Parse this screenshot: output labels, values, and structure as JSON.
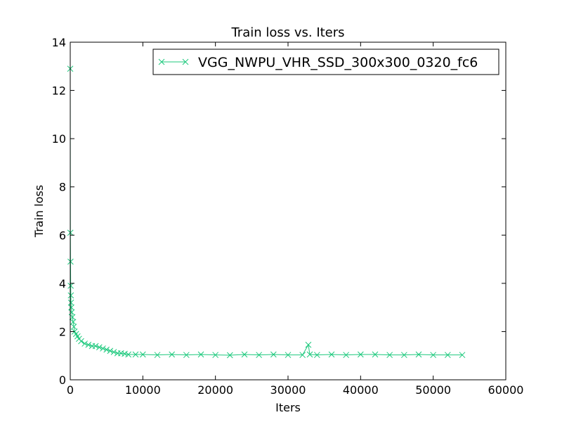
{
  "chart_data": {
    "type": "line",
    "title": "Train loss  vs. Iters",
    "xlabel": "Iters",
    "ylabel": "Train loss",
    "xlim": [
      0,
      60000
    ],
    "ylim": [
      0,
      14
    ],
    "xticks": [
      0,
      10000,
      20000,
      30000,
      40000,
      50000,
      60000
    ],
    "yticks": [
      0,
      2,
      4,
      6,
      8,
      10,
      12,
      14
    ],
    "xtick_labels": [
      "0",
      "10000",
      "20000",
      "30000",
      "40000",
      "50000",
      "60000"
    ],
    "ytick_labels": [
      "0",
      "2",
      "4",
      "6",
      "8",
      "10",
      "12",
      "14"
    ],
    "grid": false,
    "legend_position": "top-right",
    "marker": "x",
    "series": [
      {
        "name": "VGG_NWPU_VHR_SSD_300x300_0320_fc6",
        "color": "#1fc97e",
        "x": [
          0,
          20,
          40,
          60,
          80,
          100,
          150,
          200,
          300,
          400,
          500,
          600,
          800,
          1000,
          1200,
          1500,
          2000,
          2500,
          3000,
          3500,
          4000,
          4500,
          5000,
          5500,
          6000,
          6500,
          7000,
          7500,
          8000,
          9000,
          10000,
          12000,
          14000,
          16000,
          18000,
          20000,
          22000,
          24000,
          26000,
          28000,
          30000,
          32000,
          32800,
          33000,
          34000,
          36000,
          38000,
          40000,
          42000,
          44000,
          46000,
          48000,
          50000,
          52000,
          54000
        ],
        "y": [
          12.9,
          6.1,
          4.9,
          3.9,
          3.5,
          3.2,
          3.0,
          2.8,
          2.6,
          2.4,
          2.2,
          2.0,
          1.9,
          1.8,
          1.7,
          1.6,
          1.5,
          1.45,
          1.4,
          1.4,
          1.35,
          1.3,
          1.25,
          1.2,
          1.15,
          1.1,
          1.1,
          1.08,
          1.05,
          1.05,
          1.05,
          1.03,
          1.05,
          1.03,
          1.05,
          1.03,
          1.02,
          1.05,
          1.03,
          1.05,
          1.03,
          1.03,
          1.45,
          1.05,
          1.03,
          1.05,
          1.03,
          1.05,
          1.05,
          1.03,
          1.03,
          1.05,
          1.03,
          1.03,
          1.03
        ]
      }
    ]
  }
}
